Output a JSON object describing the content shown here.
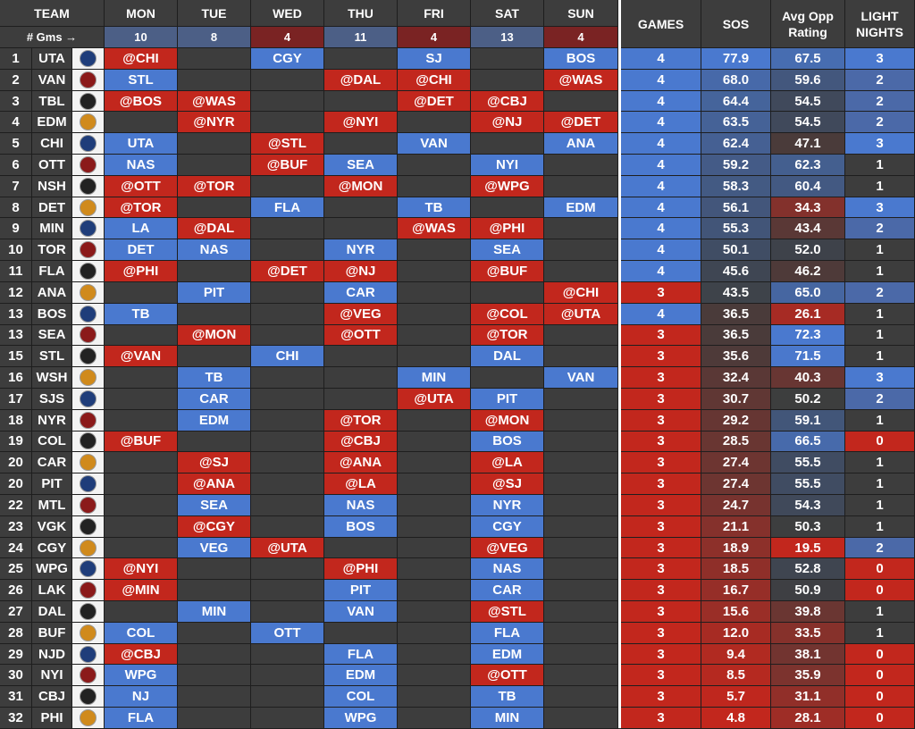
{
  "colors": {
    "blue": "#4a79cf",
    "red": "#c2271d",
    "dark": "#3d3d3d",
    "gms_blue": "#4c5f86",
    "gms_red": "#7a2323"
  },
  "header": {
    "team": "TEAM",
    "days": [
      "MON",
      "TUE",
      "WED",
      "THU",
      "FRI",
      "SAT",
      "SUN"
    ],
    "games": "GAMES",
    "sos": "SOS",
    "avg_opp_line1": "Avg Opp",
    "avg_opp_line2": "Rating",
    "light_line1": "LIGHT",
    "light_line2": "NIGHTS",
    "gms_label": "# Gms →",
    "gms_counts": [
      "10",
      "8",
      "4",
      "11",
      "4",
      "13",
      "4"
    ]
  },
  "rows": [
    {
      "rank": "1",
      "team": "UTA",
      "icon": "utah-logo-icon",
      "days": [
        "@CHI",
        "",
        "CGY",
        "",
        "SJ",
        "",
        "BOS"
      ],
      "games": "4",
      "sos": "77.9",
      "opp": "67.5",
      "light": "3"
    },
    {
      "rank": "2",
      "team": "VAN",
      "icon": "canucks-logo-icon",
      "days": [
        "STL",
        "",
        "",
        "@DAL",
        "@CHI",
        "",
        "@WAS"
      ],
      "games": "4",
      "sos": "68.0",
      "opp": "59.6",
      "light": "2"
    },
    {
      "rank": "3",
      "team": "TBL",
      "icon": "lightning-logo-icon",
      "days": [
        "@BOS",
        "@WAS",
        "",
        "",
        "@DET",
        "@CBJ",
        ""
      ],
      "games": "4",
      "sos": "64.4",
      "opp": "54.5",
      "light": "2"
    },
    {
      "rank": "4",
      "team": "EDM",
      "icon": "oilers-logo-icon",
      "days": [
        "",
        "@NYR",
        "",
        "@NYI",
        "",
        "@NJ",
        "@DET"
      ],
      "games": "4",
      "sos": "63.5",
      "opp": "54.5",
      "light": "2"
    },
    {
      "rank": "5",
      "team": "CHI",
      "icon": "blackhawks-logo-icon",
      "days": [
        "UTA",
        "",
        "@STL",
        "",
        "VAN",
        "",
        "ANA"
      ],
      "games": "4",
      "sos": "62.4",
      "opp": "47.1",
      "light": "3"
    },
    {
      "rank": "6",
      "team": "OTT",
      "icon": "senators-logo-icon",
      "days": [
        "NAS",
        "",
        "@BUF",
        "SEA",
        "",
        "NYI",
        ""
      ],
      "games": "4",
      "sos": "59.2",
      "opp": "62.3",
      "light": "1"
    },
    {
      "rank": "7",
      "team": "NSH",
      "icon": "predators-logo-icon",
      "days": [
        "@OTT",
        "@TOR",
        "",
        "@MON",
        "",
        "@WPG",
        ""
      ],
      "games": "4",
      "sos": "58.3",
      "opp": "60.4",
      "light": "1"
    },
    {
      "rank": "8",
      "team": "DET",
      "icon": "red-wings-logo-icon",
      "days": [
        "@TOR",
        "",
        "FLA",
        "",
        "TB",
        "",
        "EDM"
      ],
      "games": "4",
      "sos": "56.1",
      "opp": "34.3",
      "light": "3"
    },
    {
      "rank": "9",
      "team": "MIN",
      "icon": "wild-logo-icon",
      "days": [
        "LA",
        "@DAL",
        "",
        "",
        "@WAS",
        "@PHI",
        ""
      ],
      "games": "4",
      "sos": "55.3",
      "opp": "43.4",
      "light": "2"
    },
    {
      "rank": "10",
      "team": "TOR",
      "icon": "maple-leafs-logo-icon",
      "days": [
        "DET",
        "NAS",
        "",
        "NYR",
        "",
        "SEA",
        ""
      ],
      "games": "4",
      "sos": "50.1",
      "opp": "52.0",
      "light": "1"
    },
    {
      "rank": "11",
      "team": "FLA",
      "icon": "panthers-logo-icon",
      "days": [
        "@PHI",
        "",
        "@DET",
        "@NJ",
        "",
        "@BUF",
        ""
      ],
      "games": "4",
      "sos": "45.6",
      "opp": "46.2",
      "light": "1"
    },
    {
      "rank": "12",
      "team": "ANA",
      "icon": "ducks-logo-icon",
      "days": [
        "",
        "PIT",
        "",
        "CAR",
        "",
        "",
        "@CHI"
      ],
      "games": "3",
      "sos": "43.5",
      "opp": "65.0",
      "light": "2"
    },
    {
      "rank": "13",
      "team": "BOS",
      "icon": "bruins-logo-icon",
      "days": [
        "TB",
        "",
        "",
        "@VEG",
        "",
        "@COL",
        "@UTA"
      ],
      "games": "4",
      "sos": "36.5",
      "opp": "26.1",
      "light": "1"
    },
    {
      "rank": "13",
      "team": "SEA",
      "icon": "kraken-logo-icon",
      "days": [
        "",
        "@MON",
        "",
        "@OTT",
        "",
        "@TOR",
        ""
      ],
      "games": "3",
      "sos": "36.5",
      "opp": "72.3",
      "light": "1"
    },
    {
      "rank": "15",
      "team": "STL",
      "icon": "blues-logo-icon",
      "days": [
        "@VAN",
        "",
        "CHI",
        "",
        "",
        "DAL",
        ""
      ],
      "games": "3",
      "sos": "35.6",
      "opp": "71.5",
      "light": "1"
    },
    {
      "rank": "16",
      "team": "WSH",
      "icon": "capitals-logo-icon",
      "days": [
        "",
        "TB",
        "",
        "",
        "MIN",
        "",
        "VAN"
      ],
      "games": "3",
      "sos": "32.4",
      "opp": "40.3",
      "light": "3"
    },
    {
      "rank": "17",
      "team": "SJS",
      "icon": "sharks-logo-icon",
      "days": [
        "",
        "CAR",
        "",
        "",
        "@UTA",
        "PIT",
        ""
      ],
      "games": "3",
      "sos": "30.7",
      "opp": "50.2",
      "light": "2"
    },
    {
      "rank": "18",
      "team": "NYR",
      "icon": "rangers-logo-icon",
      "days": [
        "",
        "EDM",
        "",
        "@TOR",
        "",
        "@MON",
        ""
      ],
      "games": "3",
      "sos": "29.2",
      "opp": "59.1",
      "light": "1"
    },
    {
      "rank": "19",
      "team": "COL",
      "icon": "avalanche-logo-icon",
      "days": [
        "@BUF",
        "",
        "",
        "@CBJ",
        "",
        "BOS",
        ""
      ],
      "games": "3",
      "sos": "28.5",
      "opp": "66.5",
      "light": "0"
    },
    {
      "rank": "20",
      "team": "CAR",
      "icon": "hurricanes-logo-icon",
      "days": [
        "",
        "@SJ",
        "",
        "@ANA",
        "",
        "@LA",
        ""
      ],
      "games": "3",
      "sos": "27.4",
      "opp": "55.5",
      "light": "1"
    },
    {
      "rank": "20",
      "team": "PIT",
      "icon": "penguins-logo-icon",
      "days": [
        "",
        "@ANA",
        "",
        "@LA",
        "",
        "@SJ",
        ""
      ],
      "games": "3",
      "sos": "27.4",
      "opp": "55.5",
      "light": "1"
    },
    {
      "rank": "22",
      "team": "MTL",
      "icon": "canadiens-logo-icon",
      "days": [
        "",
        "SEA",
        "",
        "NAS",
        "",
        "NYR",
        ""
      ],
      "games": "3",
      "sos": "24.7",
      "opp": "54.3",
      "light": "1"
    },
    {
      "rank": "23",
      "team": "VGK",
      "icon": "golden-knights-logo-icon",
      "days": [
        "",
        "@CGY",
        "",
        "BOS",
        "",
        "CGY",
        ""
      ],
      "games": "3",
      "sos": "21.1",
      "opp": "50.3",
      "light": "1"
    },
    {
      "rank": "24",
      "team": "CGY",
      "icon": "flames-logo-icon",
      "days": [
        "",
        "VEG",
        "@UTA",
        "",
        "",
        "@VEG",
        ""
      ],
      "games": "3",
      "sos": "18.9",
      "opp": "19.5",
      "light": "2"
    },
    {
      "rank": "25",
      "team": "WPG",
      "icon": "jets-logo-icon",
      "days": [
        "@NYI",
        "",
        "",
        "@PHI",
        "",
        "NAS",
        ""
      ],
      "games": "3",
      "sos": "18.5",
      "opp": "52.8",
      "light": "0"
    },
    {
      "rank": "26",
      "team": "LAK",
      "icon": "kings-logo-icon",
      "days": [
        "@MIN",
        "",
        "",
        "PIT",
        "",
        "CAR",
        ""
      ],
      "games": "3",
      "sos": "16.7",
      "opp": "50.9",
      "light": "0"
    },
    {
      "rank": "27",
      "team": "DAL",
      "icon": "stars-logo-icon",
      "days": [
        "",
        "MIN",
        "",
        "VAN",
        "",
        "@STL",
        ""
      ],
      "games": "3",
      "sos": "15.6",
      "opp": "39.8",
      "light": "1"
    },
    {
      "rank": "28",
      "team": "BUF",
      "icon": "sabres-logo-icon",
      "days": [
        "COL",
        "",
        "OTT",
        "",
        "",
        "FLA",
        ""
      ],
      "games": "3",
      "sos": "12.0",
      "opp": "33.5",
      "light": "1"
    },
    {
      "rank": "29",
      "team": "NJD",
      "icon": "devils-logo-icon",
      "days": [
        "@CBJ",
        "",
        "",
        "FLA",
        "",
        "EDM",
        ""
      ],
      "games": "3",
      "sos": "9.4",
      "opp": "38.1",
      "light": "0"
    },
    {
      "rank": "30",
      "team": "NYI",
      "icon": "islanders-logo-icon",
      "days": [
        "WPG",
        "",
        "",
        "EDM",
        "",
        "@OTT",
        ""
      ],
      "games": "3",
      "sos": "8.5",
      "opp": "35.9",
      "light": "0"
    },
    {
      "rank": "31",
      "team": "CBJ",
      "icon": "blue-jackets-logo-icon",
      "days": [
        "NJ",
        "",
        "",
        "COL",
        "",
        "TB",
        ""
      ],
      "games": "3",
      "sos": "5.7",
      "opp": "31.1",
      "light": "0"
    },
    {
      "rank": "32",
      "team": "PHI",
      "icon": "flyers-logo-icon",
      "days": [
        "FLA",
        "",
        "",
        "WPG",
        "",
        "MIN",
        ""
      ],
      "games": "3",
      "sos": "4.8",
      "opp": "28.1",
      "light": "0"
    }
  ]
}
